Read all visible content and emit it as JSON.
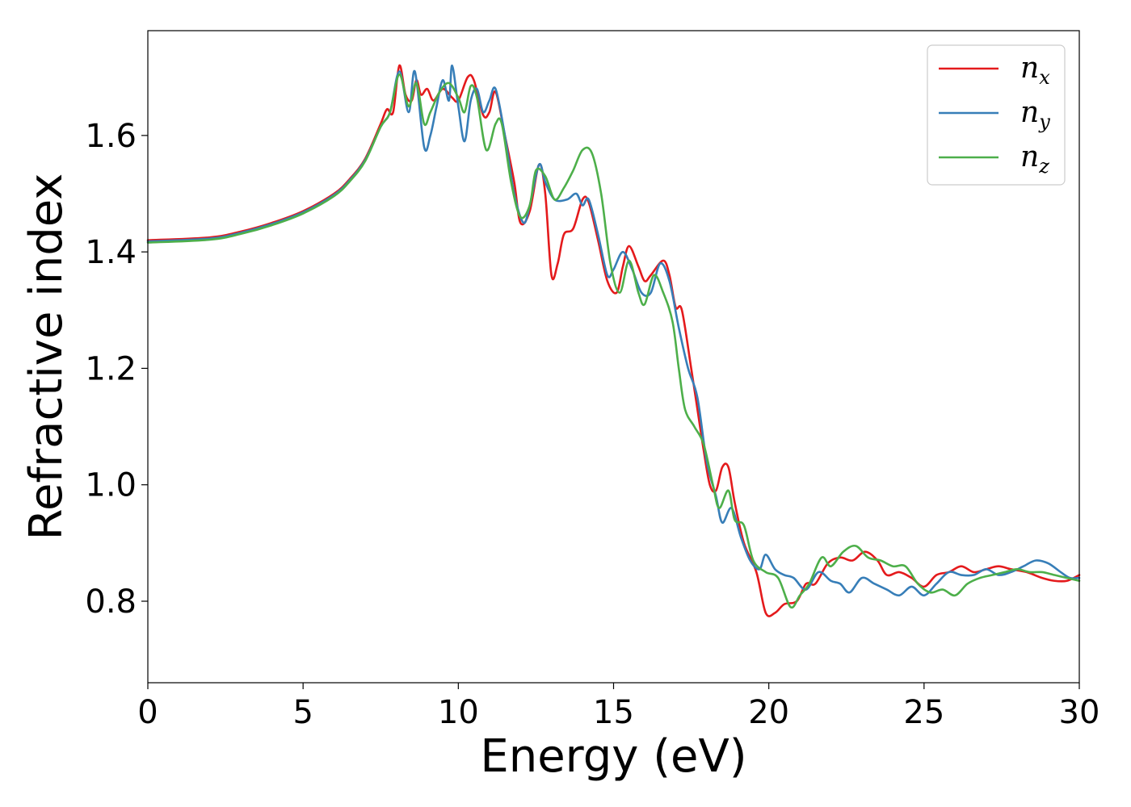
{
  "chart_data": {
    "type": "line",
    "title": "",
    "xlabel": "Energy (eV)",
    "ylabel": "Refractive index",
    "xlim": [
      0,
      30
    ],
    "ylim": [
      0.66,
      1.78
    ],
    "xticks": [
      0,
      5,
      10,
      15,
      20,
      25,
      30
    ],
    "xtick_labels": [
      "0",
      "5",
      "10",
      "15",
      "20",
      "25",
      "30"
    ],
    "yticks": [
      0.8,
      1.0,
      1.2,
      1.4,
      1.6
    ],
    "ytick_labels": [
      "0.8",
      "1.0",
      "1.2",
      "1.4",
      "1.6"
    ],
    "grid": false,
    "legend_position": "top-right",
    "series": [
      {
        "name": "n",
        "sub": "x",
        "color": "#e41a1c",
        "points": [
          [
            0,
            1.42
          ],
          [
            2,
            1.425
          ],
          [
            3,
            1.435
          ],
          [
            4,
            1.45
          ],
          [
            5,
            1.47
          ],
          [
            6,
            1.5
          ],
          [
            6.5,
            1.525
          ],
          [
            7,
            1.56
          ],
          [
            7.5,
            1.62
          ],
          [
            7.7,
            1.645
          ],
          [
            7.9,
            1.64
          ],
          [
            8.1,
            1.72
          ],
          [
            8.3,
            1.67
          ],
          [
            8.5,
            1.66
          ],
          [
            8.65,
            1.695
          ],
          [
            8.8,
            1.67
          ],
          [
            9.0,
            1.68
          ],
          [
            9.2,
            1.66
          ],
          [
            9.5,
            1.68
          ],
          [
            9.8,
            1.665
          ],
          [
            10.0,
            1.66
          ],
          [
            10.3,
            1.7
          ],
          [
            10.5,
            1.695
          ],
          [
            10.8,
            1.635
          ],
          [
            11.0,
            1.64
          ],
          [
            11.2,
            1.675
          ],
          [
            11.5,
            1.6
          ],
          [
            11.8,
            1.52
          ],
          [
            12.0,
            1.45
          ],
          [
            12.3,
            1.47
          ],
          [
            12.6,
            1.55
          ],
          [
            12.8,
            1.5
          ],
          [
            13.0,
            1.36
          ],
          [
            13.2,
            1.38
          ],
          [
            13.4,
            1.43
          ],
          [
            13.7,
            1.44
          ],
          [
            14.0,
            1.49
          ],
          [
            14.2,
            1.485
          ],
          [
            14.5,
            1.42
          ],
          [
            14.8,
            1.35
          ],
          [
            15.1,
            1.33
          ],
          [
            15.3,
            1.375
          ],
          [
            15.5,
            1.41
          ],
          [
            15.8,
            1.375
          ],
          [
            16.0,
            1.35
          ],
          [
            16.2,
            1.36
          ],
          [
            16.6,
            1.385
          ],
          [
            16.8,
            1.36
          ],
          [
            17.0,
            1.305
          ],
          [
            17.2,
            1.3
          ],
          [
            17.5,
            1.2
          ],
          [
            17.7,
            1.13
          ],
          [
            17.9,
            1.06
          ],
          [
            18.1,
            1.0
          ],
          [
            18.3,
            0.99
          ],
          [
            18.5,
            1.03
          ],
          [
            18.7,
            1.03
          ],
          [
            18.9,
            0.97
          ],
          [
            19.2,
            0.9
          ],
          [
            19.6,
            0.85
          ],
          [
            19.9,
            0.78
          ],
          [
            20.2,
            0.78
          ],
          [
            20.5,
            0.795
          ],
          [
            20.9,
            0.8
          ],
          [
            21.2,
            0.83
          ],
          [
            21.5,
            0.83
          ],
          [
            21.9,
            0.865
          ],
          [
            22.3,
            0.875
          ],
          [
            22.7,
            0.87
          ],
          [
            23.1,
            0.885
          ],
          [
            23.5,
            0.87
          ],
          [
            23.8,
            0.845
          ],
          [
            24.2,
            0.85
          ],
          [
            24.6,
            0.84
          ],
          [
            25.0,
            0.825
          ],
          [
            25.4,
            0.845
          ],
          [
            25.8,
            0.85
          ],
          [
            26.2,
            0.86
          ],
          [
            26.6,
            0.85
          ],
          [
            27.0,
            0.855
          ],
          [
            27.4,
            0.86
          ],
          [
            27.8,
            0.855
          ],
          [
            28.3,
            0.85
          ],
          [
            28.8,
            0.84
          ],
          [
            29.2,
            0.835
          ],
          [
            29.6,
            0.835
          ],
          [
            30,
            0.845
          ]
        ]
      },
      {
        "name": "n",
        "sub": "y",
        "color": "#377eb8",
        "points": [
          [
            0,
            1.418
          ],
          [
            2,
            1.423
          ],
          [
            3,
            1.433
          ],
          [
            4,
            1.448
          ],
          [
            5,
            1.468
          ],
          [
            6,
            1.498
          ],
          [
            6.5,
            1.523
          ],
          [
            7,
            1.558
          ],
          [
            7.5,
            1.615
          ],
          [
            7.8,
            1.64
          ],
          [
            8.1,
            1.71
          ],
          [
            8.4,
            1.64
          ],
          [
            8.6,
            1.71
          ],
          [
            8.9,
            1.58
          ],
          [
            9.1,
            1.6
          ],
          [
            9.3,
            1.65
          ],
          [
            9.5,
            1.695
          ],
          [
            9.7,
            1.66
          ],
          [
            9.8,
            1.72
          ],
          [
            10.0,
            1.65
          ],
          [
            10.2,
            1.59
          ],
          [
            10.4,
            1.66
          ],
          [
            10.6,
            1.68
          ],
          [
            10.8,
            1.64
          ],
          [
            11.0,
            1.66
          ],
          [
            11.2,
            1.68
          ],
          [
            11.5,
            1.6
          ],
          [
            11.8,
            1.5
          ],
          [
            12.1,
            1.45
          ],
          [
            12.3,
            1.48
          ],
          [
            12.6,
            1.55
          ],
          [
            12.8,
            1.52
          ],
          [
            13.1,
            1.49
          ],
          [
            13.5,
            1.49
          ],
          [
            13.8,
            1.5
          ],
          [
            14.0,
            1.48
          ],
          [
            14.2,
            1.49
          ],
          [
            14.5,
            1.43
          ],
          [
            14.8,
            1.36
          ],
          [
            15.0,
            1.37
          ],
          [
            15.3,
            1.4
          ],
          [
            15.6,
            1.37
          ],
          [
            15.9,
            1.33
          ],
          [
            16.2,
            1.33
          ],
          [
            16.5,
            1.38
          ],
          [
            16.8,
            1.35
          ],
          [
            17.1,
            1.27
          ],
          [
            17.4,
            1.2
          ],
          [
            17.7,
            1.15
          ],
          [
            18.0,
            1.04
          ],
          [
            18.3,
            0.98
          ],
          [
            18.5,
            0.935
          ],
          [
            18.8,
            0.96
          ],
          [
            19.1,
            0.91
          ],
          [
            19.4,
            0.87
          ],
          [
            19.7,
            0.855
          ],
          [
            19.9,
            0.88
          ],
          [
            20.2,
            0.855
          ],
          [
            20.5,
            0.845
          ],
          [
            20.8,
            0.84
          ],
          [
            21.2,
            0.82
          ],
          [
            21.6,
            0.85
          ],
          [
            22.0,
            0.835
          ],
          [
            22.3,
            0.83
          ],
          [
            22.6,
            0.815
          ],
          [
            23.0,
            0.84
          ],
          [
            23.4,
            0.83
          ],
          [
            23.8,
            0.82
          ],
          [
            24.2,
            0.81
          ],
          [
            24.6,
            0.825
          ],
          [
            25.0,
            0.81
          ],
          [
            25.4,
            0.83
          ],
          [
            25.8,
            0.85
          ],
          [
            26.2,
            0.845
          ],
          [
            26.6,
            0.845
          ],
          [
            27.0,
            0.855
          ],
          [
            27.4,
            0.845
          ],
          [
            27.8,
            0.85
          ],
          [
            28.2,
            0.86
          ],
          [
            28.6,
            0.87
          ],
          [
            29.0,
            0.865
          ],
          [
            29.4,
            0.85
          ],
          [
            29.7,
            0.84
          ],
          [
            30,
            0.84
          ]
        ]
      },
      {
        "name": "n",
        "sub": "z",
        "color": "#4daf4a",
        "points": [
          [
            0,
            1.416
          ],
          [
            2,
            1.421
          ],
          [
            3,
            1.431
          ],
          [
            4,
            1.446
          ],
          [
            5,
            1.466
          ],
          [
            6,
            1.496
          ],
          [
            6.5,
            1.521
          ],
          [
            7,
            1.556
          ],
          [
            7.5,
            1.615
          ],
          [
            7.8,
            1.64
          ],
          [
            8.1,
            1.705
          ],
          [
            8.4,
            1.65
          ],
          [
            8.65,
            1.69
          ],
          [
            8.9,
            1.62
          ],
          [
            9.1,
            1.64
          ],
          [
            9.4,
            1.675
          ],
          [
            9.7,
            1.69
          ],
          [
            10.0,
            1.665
          ],
          [
            10.2,
            1.64
          ],
          [
            10.4,
            1.685
          ],
          [
            10.6,
            1.665
          ],
          [
            10.9,
            1.575
          ],
          [
            11.2,
            1.62
          ],
          [
            11.4,
            1.62
          ],
          [
            11.7,
            1.52
          ],
          [
            12.0,
            1.46
          ],
          [
            12.3,
            1.48
          ],
          [
            12.5,
            1.54
          ],
          [
            12.8,
            1.53
          ],
          [
            13.1,
            1.49
          ],
          [
            13.4,
            1.51
          ],
          [
            13.7,
            1.54
          ],
          [
            14.0,
            1.575
          ],
          [
            14.3,
            1.57
          ],
          [
            14.6,
            1.5
          ],
          [
            14.9,
            1.38
          ],
          [
            15.2,
            1.33
          ],
          [
            15.5,
            1.385
          ],
          [
            15.8,
            1.33
          ],
          [
            16.0,
            1.31
          ],
          [
            16.3,
            1.36
          ],
          [
            16.6,
            1.33
          ],
          [
            16.9,
            1.28
          ],
          [
            17.1,
            1.2
          ],
          [
            17.3,
            1.13
          ],
          [
            17.6,
            1.1
          ],
          [
            17.9,
            1.07
          ],
          [
            18.2,
            1.0
          ],
          [
            18.4,
            0.96
          ],
          [
            18.7,
            0.99
          ],
          [
            18.9,
            0.94
          ],
          [
            19.2,
            0.93
          ],
          [
            19.5,
            0.87
          ],
          [
            19.9,
            0.85
          ],
          [
            20.3,
            0.84
          ],
          [
            20.7,
            0.79
          ],
          [
            21.0,
            0.81
          ],
          [
            21.3,
            0.83
          ],
          [
            21.7,
            0.875
          ],
          [
            22.0,
            0.86
          ],
          [
            22.4,
            0.885
          ],
          [
            22.8,
            0.895
          ],
          [
            23.2,
            0.875
          ],
          [
            23.6,
            0.87
          ],
          [
            24.0,
            0.86
          ],
          [
            24.4,
            0.86
          ],
          [
            24.8,
            0.83
          ],
          [
            25.2,
            0.815
          ],
          [
            25.6,
            0.82
          ],
          [
            26.0,
            0.81
          ],
          [
            26.4,
            0.83
          ],
          [
            26.8,
            0.84
          ],
          [
            27.2,
            0.845
          ],
          [
            27.6,
            0.85
          ],
          [
            28.0,
            0.855
          ],
          [
            28.4,
            0.85
          ],
          [
            28.8,
            0.85
          ],
          [
            29.2,
            0.845
          ],
          [
            29.6,
            0.84
          ],
          [
            30,
            0.835
          ]
        ]
      }
    ]
  }
}
